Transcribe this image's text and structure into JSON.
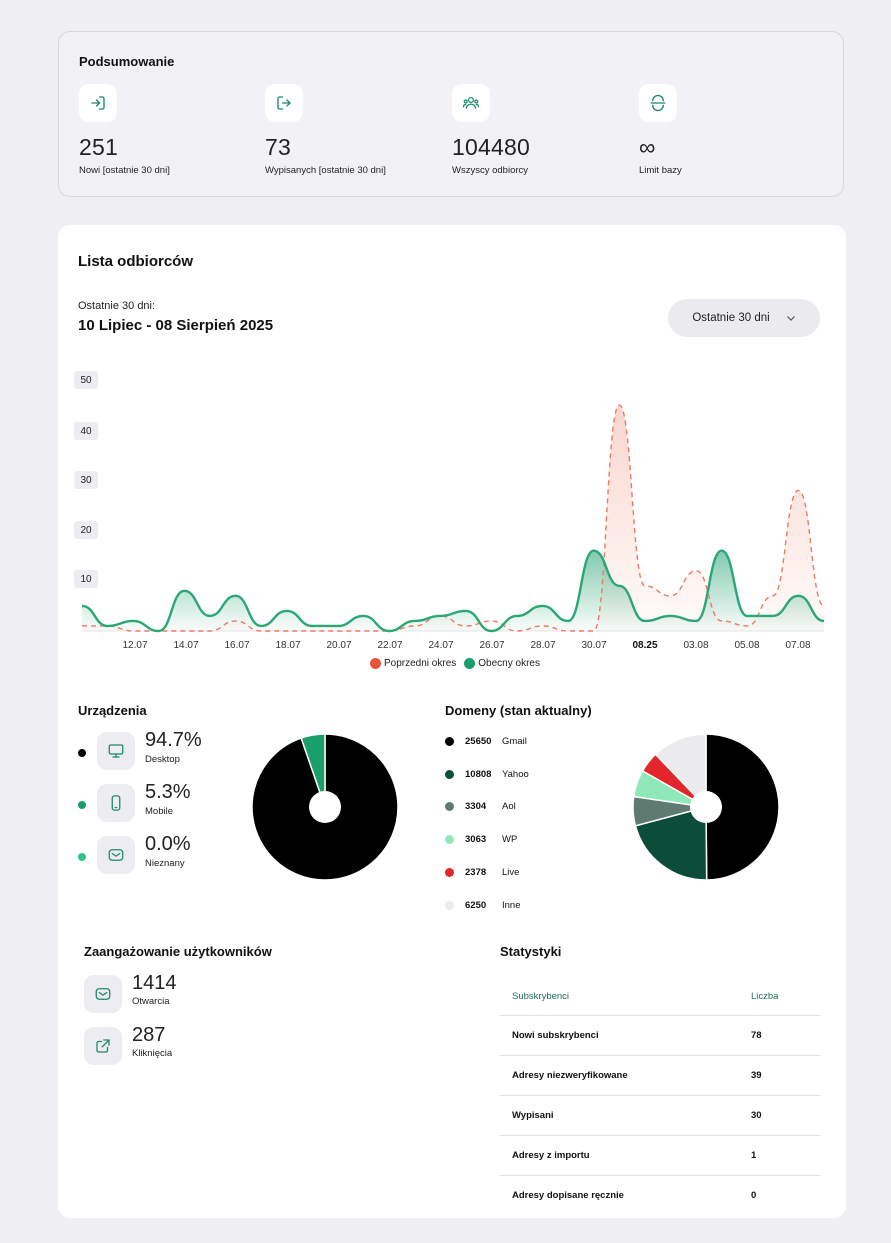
{
  "summary": {
    "title": "Podsumowanie",
    "items": [
      {
        "icon": "login-icon",
        "value": "251",
        "label": "Nowi [ostatnie 30 dni]"
      },
      {
        "icon": "logout-icon",
        "value": "73",
        "label": "Wypisanych [ostatnie 30 dni]"
      },
      {
        "icon": "users-icon",
        "value": "104480",
        "label": "Wszyscy odbiorcy"
      },
      {
        "icon": "database-limit-icon",
        "value": "∞",
        "label": "Limit bazy"
      }
    ]
  },
  "recipients": {
    "title": "Lista odbiorców",
    "period_label": "Ostatnie 30 dni:",
    "period_range": "10 Lipiec - 08 Sierpień 2025",
    "period_select": "Ostatnie 30 dni"
  },
  "chart_data": {
    "type": "area",
    "x": [
      "10.07",
      "11.07",
      "12.07",
      "13.07",
      "14.07",
      "15.07",
      "16.07",
      "17.07",
      "18.07",
      "19.07",
      "20.07",
      "21.07",
      "22.07",
      "23.07",
      "24.07",
      "25.07",
      "26.07",
      "27.07",
      "28.07",
      "29.07",
      "30.07",
      "31.07",
      "08.25",
      "02.08",
      "03.08",
      "04.08",
      "05.08",
      "06.08",
      "07.08",
      "08.08"
    ],
    "x_tick_labels": [
      "12.07",
      "14.07",
      "16.07",
      "18.07",
      "20.07",
      "22.07",
      "24.07",
      "26.07",
      "28.07",
      "30.07",
      "08.25",
      "03.08",
      "05.08",
      "07.08"
    ],
    "y_ticks": [
      10,
      20,
      30,
      40,
      50
    ],
    "ylim": [
      0,
      50
    ],
    "legend_position": "bottom",
    "series": [
      {
        "name": "Poprzedni okres",
        "color": "#e8533a",
        "style": "dashed",
        "values": [
          1,
          1,
          0,
          0,
          0,
          0,
          2,
          0,
          0,
          0,
          0,
          0,
          0,
          1,
          3,
          1,
          2,
          0,
          1,
          0,
          0,
          45,
          9,
          7,
          12,
          2,
          1,
          7,
          28,
          5
        ]
      },
      {
        "name": "Obecny okres",
        "color": "#1a9e6c",
        "style": "solid",
        "values": [
          5,
          1,
          2,
          0,
          8,
          3,
          7,
          1,
          4,
          1,
          1,
          3,
          0,
          2,
          3,
          4,
          0,
          3,
          5,
          2,
          16,
          9,
          2,
          3,
          2,
          16,
          3,
          3,
          7,
          2
        ]
      }
    ]
  },
  "devices": {
    "title": "Urządzenia",
    "items": [
      {
        "icon": "desktop-icon",
        "value": "94.7%",
        "label": "Desktop",
        "color": "#000000",
        "pct": 94.7
      },
      {
        "icon": "mobile-icon",
        "value": "5.3%",
        "label": "Mobile",
        "color": "#1a9e6c",
        "pct": 5.3
      },
      {
        "icon": "unknown-device-icon",
        "value": "0.0%",
        "label": "Nieznany",
        "color": "#2fc48a",
        "pct": 0.0
      }
    ]
  },
  "domains": {
    "title": "Domeny (stan aktualny)",
    "items": [
      {
        "count": "25650",
        "name": "Gmail",
        "value": 25650,
        "color": "#000000"
      },
      {
        "count": "10808",
        "name": "Yahoo",
        "value": 10808,
        "color": "#0b4d38"
      },
      {
        "count": "3304",
        "name": "Aol",
        "value": 3304,
        "color": "#5f7a70"
      },
      {
        "count": "3063",
        "name": "WP",
        "value": 3063,
        "color": "#8ee8b8"
      },
      {
        "count": "2378",
        "name": "Live",
        "value": 2378,
        "color": "#e3262b"
      },
      {
        "count": "6250",
        "name": "Inne",
        "value": 6250,
        "color": "#ececef"
      }
    ]
  },
  "engagement": {
    "title": "Zaangażowanie użytkowników",
    "items": [
      {
        "icon": "mail-open-icon",
        "value": "1414",
        "label": "Otwarcia"
      },
      {
        "icon": "external-link-icon",
        "value": "287",
        "label": "Kliknięcia"
      }
    ]
  },
  "stats": {
    "title": "Statystyki",
    "headers": [
      "Subskrybenci",
      "Liczba"
    ],
    "rows": [
      [
        "Nowi subskrybenci",
        "78"
      ],
      [
        "Adresy niezweryfikowane",
        "39"
      ],
      [
        "Wypisani",
        "30"
      ],
      [
        "Adresy z importu",
        "1"
      ],
      [
        "Adresy dopisane ręcznie",
        "0"
      ]
    ]
  }
}
